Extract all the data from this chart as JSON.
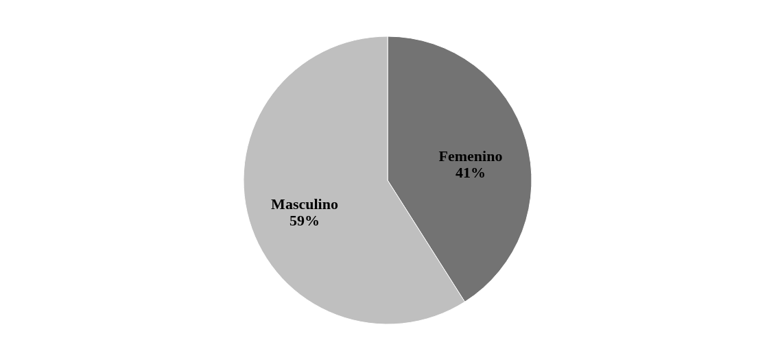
{
  "chart_data": {
    "type": "pie",
    "categories": [
      "Femenino",
      "Masculino"
    ],
    "values": [
      41,
      59
    ],
    "colors": [
      "#737373",
      "#bfbfbf"
    ],
    "value_labels": [
      "41%",
      "59%"
    ],
    "legend": false
  }
}
